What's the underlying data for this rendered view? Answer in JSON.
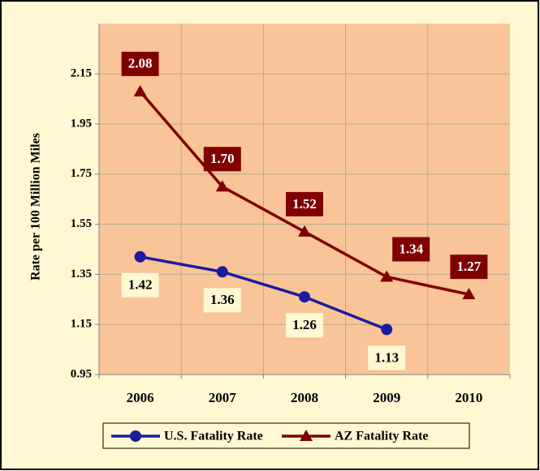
{
  "chart_data": {
    "type": "line",
    "y_label": "Rate per 100 Million Miles",
    "categories": [
      "2006",
      "2007",
      "2008",
      "2009",
      "2010"
    ],
    "series": [
      {
        "name": "U.S. Fatality Rate",
        "color": "#1c1c9c",
        "marker": "circle",
        "values": [
          1.42,
          1.36,
          1.26,
          1.13,
          null
        ],
        "value_labels": [
          "1.42",
          "1.36",
          "1.26",
          "1.13",
          null
        ]
      },
      {
        "name": "AZ Fatality Rate",
        "color": "#7f0000",
        "marker": "triangle",
        "values": [
          2.08,
          1.7,
          1.52,
          1.34,
          1.27
        ],
        "value_labels": [
          "2.08",
          "1.70",
          "1.52",
          "1.34",
          "1.27"
        ]
      }
    ],
    "ylim": [
      0.95,
      2.35
    ],
    "yticks": [
      0.95,
      1.15,
      1.35,
      1.55,
      1.75,
      1.95,
      2.15
    ],
    "grid": true,
    "legend": "bottom"
  }
}
